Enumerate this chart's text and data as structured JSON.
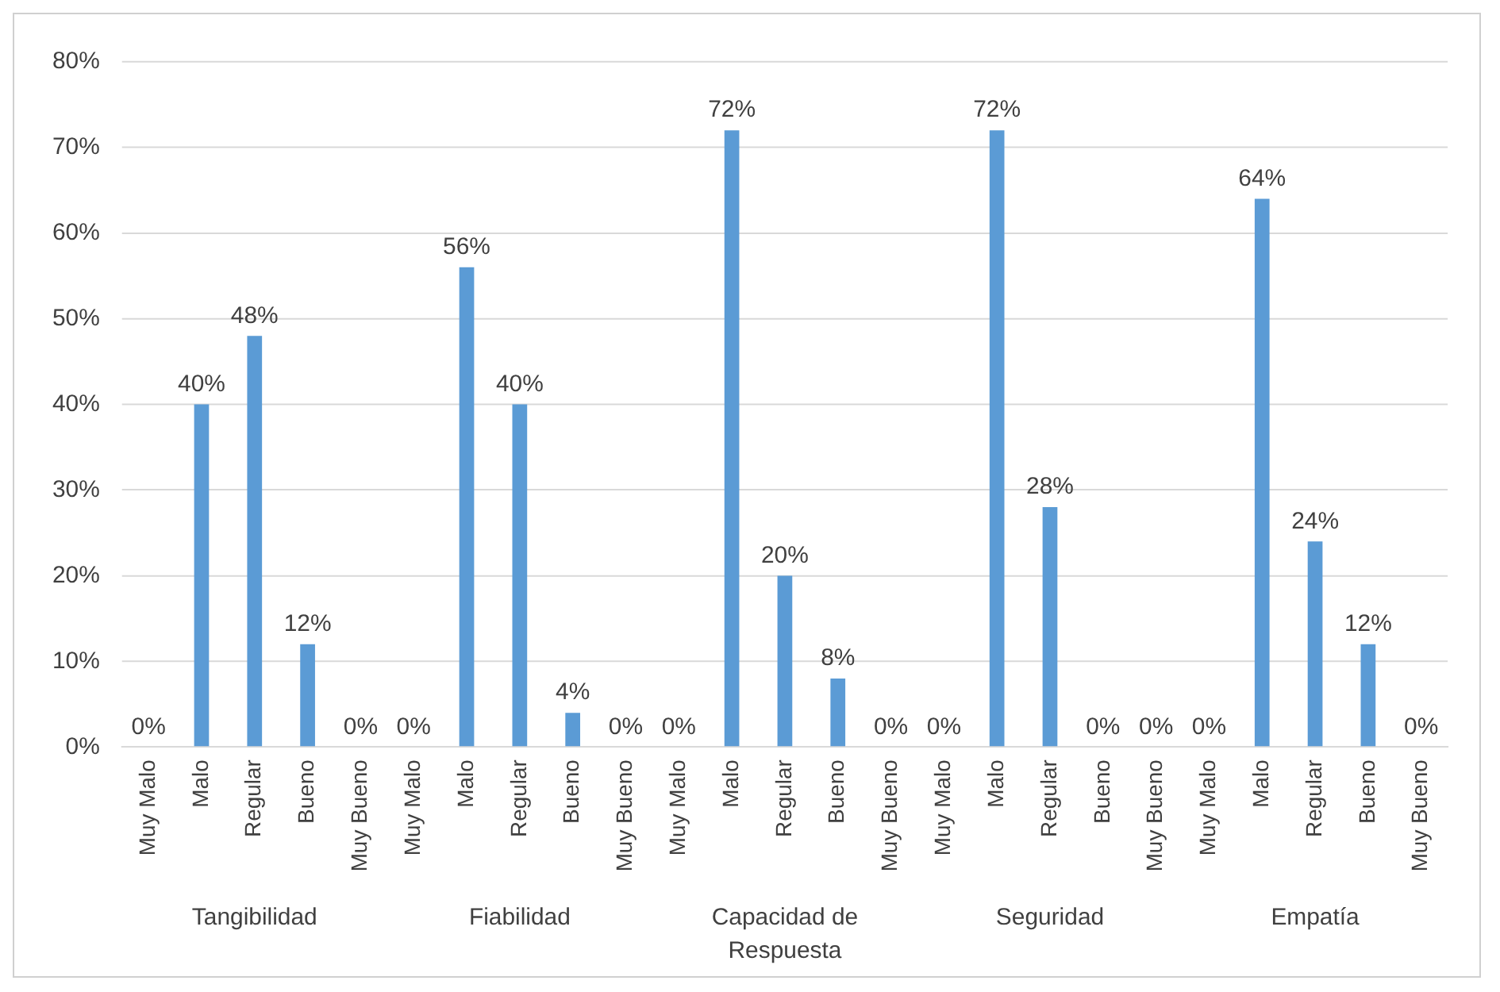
{
  "chart_data": {
    "type": "bar",
    "categories": [
      "Muy Malo",
      "Malo",
      "Regular",
      "Bueno",
      "Muy Bueno",
      "Muy Malo",
      "Malo",
      "Regular",
      "Bueno",
      "Muy Bueno",
      "Muy Malo",
      "Malo",
      "Regular",
      "Bueno",
      "Muy Bueno",
      "Muy Malo",
      "Malo",
      "Regular",
      "Bueno",
      "Muy Bueno",
      "Muy Malo",
      "Malo",
      "Regular",
      "Bueno",
      "Muy Bueno"
    ],
    "values": [
      0,
      40,
      48,
      12,
      0,
      0,
      56,
      40,
      4,
      0,
      0,
      72,
      20,
      8,
      0,
      0,
      72,
      28,
      0,
      0,
      0,
      64,
      24,
      12,
      0
    ],
    "value_labels": [
      "0%",
      "40%",
      "48%",
      "12%",
      "0%",
      "0%",
      "56%",
      "40%",
      "4%",
      "0%",
      "0%",
      "72%",
      "20%",
      "8%",
      "0%",
      "0%",
      "72%",
      "28%",
      "0%",
      "0%",
      "0%",
      "64%",
      "24%",
      "12%",
      "0%"
    ],
    "color": "#5b9bd5",
    "ylim": [
      0,
      80
    ],
    "yticks": [
      {
        "value": 0,
        "label": "0%"
      },
      {
        "value": 10,
        "label": "10%"
      },
      {
        "value": 20,
        "label": "20%"
      },
      {
        "value": 30,
        "label": "30%"
      },
      {
        "value": 40,
        "label": "40%"
      },
      {
        "value": 50,
        "label": "50%"
      },
      {
        "value": 60,
        "label": "60%"
      },
      {
        "value": 70,
        "label": "70%"
      },
      {
        "value": 80,
        "label": "80%"
      }
    ],
    "annotations": [
      "Tangibilidad",
      "Fiabilidad",
      "Capacidad de Respuesta",
      "Seguridad",
      "Empatía"
    ],
    "grid": "y",
    "legend": false
  }
}
